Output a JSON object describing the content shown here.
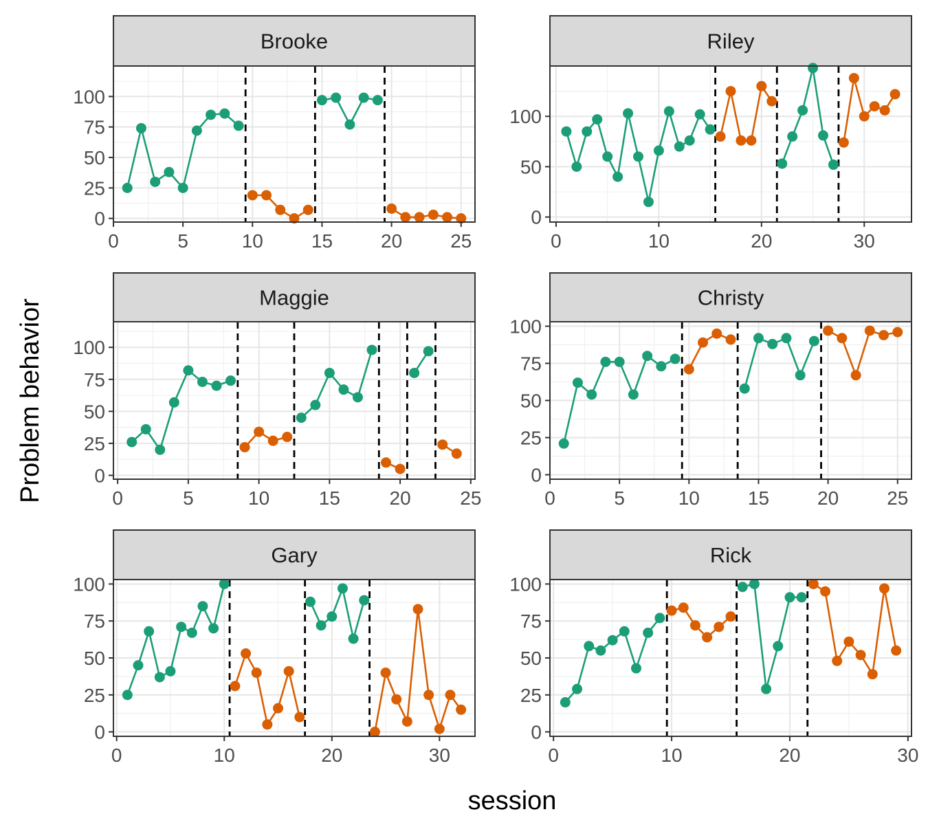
{
  "chart_data": {
    "type": "line",
    "xlabel": "session",
    "ylabel": "Problem behavior",
    "colors": {
      "A": "#1b9e77",
      "B": "#d95f02",
      "phase_line": "#000000",
      "strip_fill": "#d9d9d9"
    },
    "panels": [
      {
        "name": "Brooke",
        "xlim": [
          0,
          26
        ],
        "ylim": [
          -3,
          125
        ],
        "xticks": [
          0,
          5,
          10,
          15,
          20,
          25
        ],
        "yticks": [
          0,
          25,
          50,
          75,
          100
        ],
        "phase_lines": [
          9.5,
          14.5,
          19.5
        ],
        "phases": [
          {
            "phase": "A",
            "x": [
              1,
              2,
              3,
              4,
              5,
              6,
              7,
              8,
              9
            ],
            "y": [
              25,
              74,
              30,
              38,
              25,
              72,
              85,
              86,
              76
            ]
          },
          {
            "phase": "B",
            "x": [
              10,
              11,
              12,
              13,
              14
            ],
            "y": [
              19,
              19,
              7,
              0,
              7
            ]
          },
          {
            "phase": "A",
            "x": [
              15,
              16,
              17,
              18,
              19
            ],
            "y": [
              97,
              99,
              77,
              99,
              97
            ]
          },
          {
            "phase": "B",
            "x": [
              20,
              21,
              22,
              23,
              24,
              25
            ],
            "y": [
              8,
              1,
              1,
              3,
              1,
              0
            ]
          }
        ]
      },
      {
        "name": "Riley",
        "xlim": [
          -0.6,
          34.6
        ],
        "ylim": [
          -5,
          150
        ],
        "xticks": [
          0,
          10,
          20,
          30
        ],
        "yticks": [
          0,
          50,
          100
        ],
        "phase_lines": [
          15.5,
          21.5,
          27.5
        ],
        "phases": [
          {
            "phase": "A",
            "x": [
              1,
              2,
              3,
              4,
              5,
              6,
              7,
              8,
              9,
              10,
              11,
              12,
              13,
              14,
              15
            ],
            "y": [
              85,
              50,
              85,
              97,
              60,
              40,
              103,
              60,
              15,
              66,
              105,
              70,
              76,
              102,
              87
            ]
          },
          {
            "phase": "B",
            "x": [
              16,
              17,
              18,
              19,
              20,
              21
            ],
            "y": [
              80,
              125,
              76,
              76,
              130,
              115
            ]
          },
          {
            "phase": "A",
            "x": [
              22,
              23,
              24,
              25,
              26,
              27
            ],
            "y": [
              53,
              80,
              106,
              148,
              81,
              52
            ]
          },
          {
            "phase": "B",
            "x": [
              28,
              29,
              30,
              31,
              32,
              33
            ],
            "y": [
              74,
              138,
              100,
              110,
              106,
              122
            ]
          }
        ]
      },
      {
        "name": "Maggie",
        "xlim": [
          -0.3,
          25.3
        ],
        "ylim": [
          -3,
          120
        ],
        "xticks": [
          0,
          5,
          10,
          15,
          20,
          25
        ],
        "yticks": [
          0,
          25,
          50,
          75,
          100
        ],
        "phase_lines": [
          8.5,
          12.5,
          18.5,
          20.5,
          22.5
        ],
        "phases": [
          {
            "phase": "A",
            "x": [
              1,
              2,
              3,
              4,
              5,
              6,
              7,
              8
            ],
            "y": [
              26,
              36,
              20,
              57,
              82,
              73,
              70,
              74
            ]
          },
          {
            "phase": "B",
            "x": [
              9,
              10,
              11,
              12
            ],
            "y": [
              22,
              34,
              27,
              30
            ]
          },
          {
            "phase": "A",
            "x": [
              13,
              14,
              15,
              16,
              17,
              18
            ],
            "y": [
              45,
              55,
              80,
              67,
              61,
              98
            ]
          },
          {
            "phase": "B",
            "x": [
              19,
              20
            ],
            "y": [
              10,
              5
            ]
          },
          {
            "phase": "A",
            "x": [
              21,
              22
            ],
            "y": [
              80,
              97
            ]
          },
          {
            "phase": "B",
            "x": [
              23,
              24
            ],
            "y": [
              24,
              17
            ]
          }
        ]
      },
      {
        "name": "Christy",
        "xlim": [
          0,
          26
        ],
        "ylim": [
          -3,
          103
        ],
        "xticks": [
          0,
          5,
          10,
          15,
          20,
          25
        ],
        "yticks": [
          0,
          25,
          50,
          75,
          100
        ],
        "phase_lines": [
          9.5,
          13.5,
          19.5
        ],
        "phases": [
          {
            "phase": "A",
            "x": [
              1,
              2,
              3,
              4,
              5,
              6,
              7,
              8,
              9
            ],
            "y": [
              21,
              62,
              54,
              76,
              76,
              54,
              80,
              73,
              78
            ]
          },
          {
            "phase": "B",
            "x": [
              10,
              11,
              12,
              13
            ],
            "y": [
              71,
              89,
              95,
              91
            ]
          },
          {
            "phase": "A",
            "x": [
              14,
              15,
              16,
              17,
              18,
              19
            ],
            "y": [
              58,
              92,
              88,
              92,
              67,
              90
            ]
          },
          {
            "phase": "B",
            "x": [
              20,
              21,
              22,
              23,
              24,
              25
            ],
            "y": [
              97,
              92,
              67,
              97,
              94,
              96
            ]
          }
        ]
      },
      {
        "name": "Gary",
        "xlim": [
          -0.3,
          33.3
        ],
        "ylim": [
          -3,
          103
        ],
        "xticks": [
          0,
          10,
          20,
          30
        ],
        "yticks": [
          0,
          25,
          50,
          75,
          100
        ],
        "phase_lines": [
          10.5,
          17.5,
          23.5
        ],
        "phases": [
          {
            "phase": "A",
            "x": [
              1,
              2,
              3,
              4,
              5,
              6,
              7,
              8,
              9,
              10
            ],
            "y": [
              25,
              45,
              68,
              37,
              41,
              71,
              67,
              85,
              70,
              100
            ]
          },
          {
            "phase": "B",
            "x": [
              11,
              12,
              13,
              14,
              15,
              16,
              17
            ],
            "y": [
              31,
              53,
              40,
              5,
              16,
              41,
              10
            ]
          },
          {
            "phase": "A",
            "x": [
              18,
              19,
              20,
              21,
              22,
              23
            ],
            "y": [
              88,
              72,
              78,
              97,
              63,
              89
            ]
          },
          {
            "phase": "B",
            "x": [
              24,
              25,
              26,
              27,
              28,
              29,
              30,
              31,
              32
            ],
            "y": [
              0,
              40,
              22,
              7,
              83,
              25,
              2,
              25,
              15
            ]
          }
        ]
      },
      {
        "name": "Rick",
        "xlim": [
          -0.3,
          30.3
        ],
        "ylim": [
          -3,
          103
        ],
        "xticks": [
          0,
          10,
          20,
          30
        ],
        "yticks": [
          0,
          25,
          50,
          75,
          100
        ],
        "phase_lines": [
          9.6,
          15.5,
          21.5
        ],
        "phases": [
          {
            "phase": "A",
            "x": [
              1,
              2,
              3,
              4,
              5,
              6,
              7,
              8,
              9
            ],
            "y": [
              20,
              29,
              58,
              55,
              62,
              68,
              43,
              67,
              77
            ]
          },
          {
            "phase": "B",
            "x": [
              10,
              11,
              12,
              13,
              14,
              15
            ],
            "y": [
              82,
              84,
              72,
              64,
              71,
              78
            ]
          },
          {
            "phase": "A",
            "x": [
              16,
              17,
              18,
              19,
              20,
              21
            ],
            "y": [
              98,
              100,
              29,
              58,
              91,
              91
            ]
          },
          {
            "phase": "B",
            "x": [
              22,
              23,
              24,
              25,
              26,
              27,
              28,
              29
            ],
            "y": [
              100,
              95,
              48,
              61,
              52,
              39,
              97,
              55
            ]
          }
        ]
      }
    ]
  }
}
